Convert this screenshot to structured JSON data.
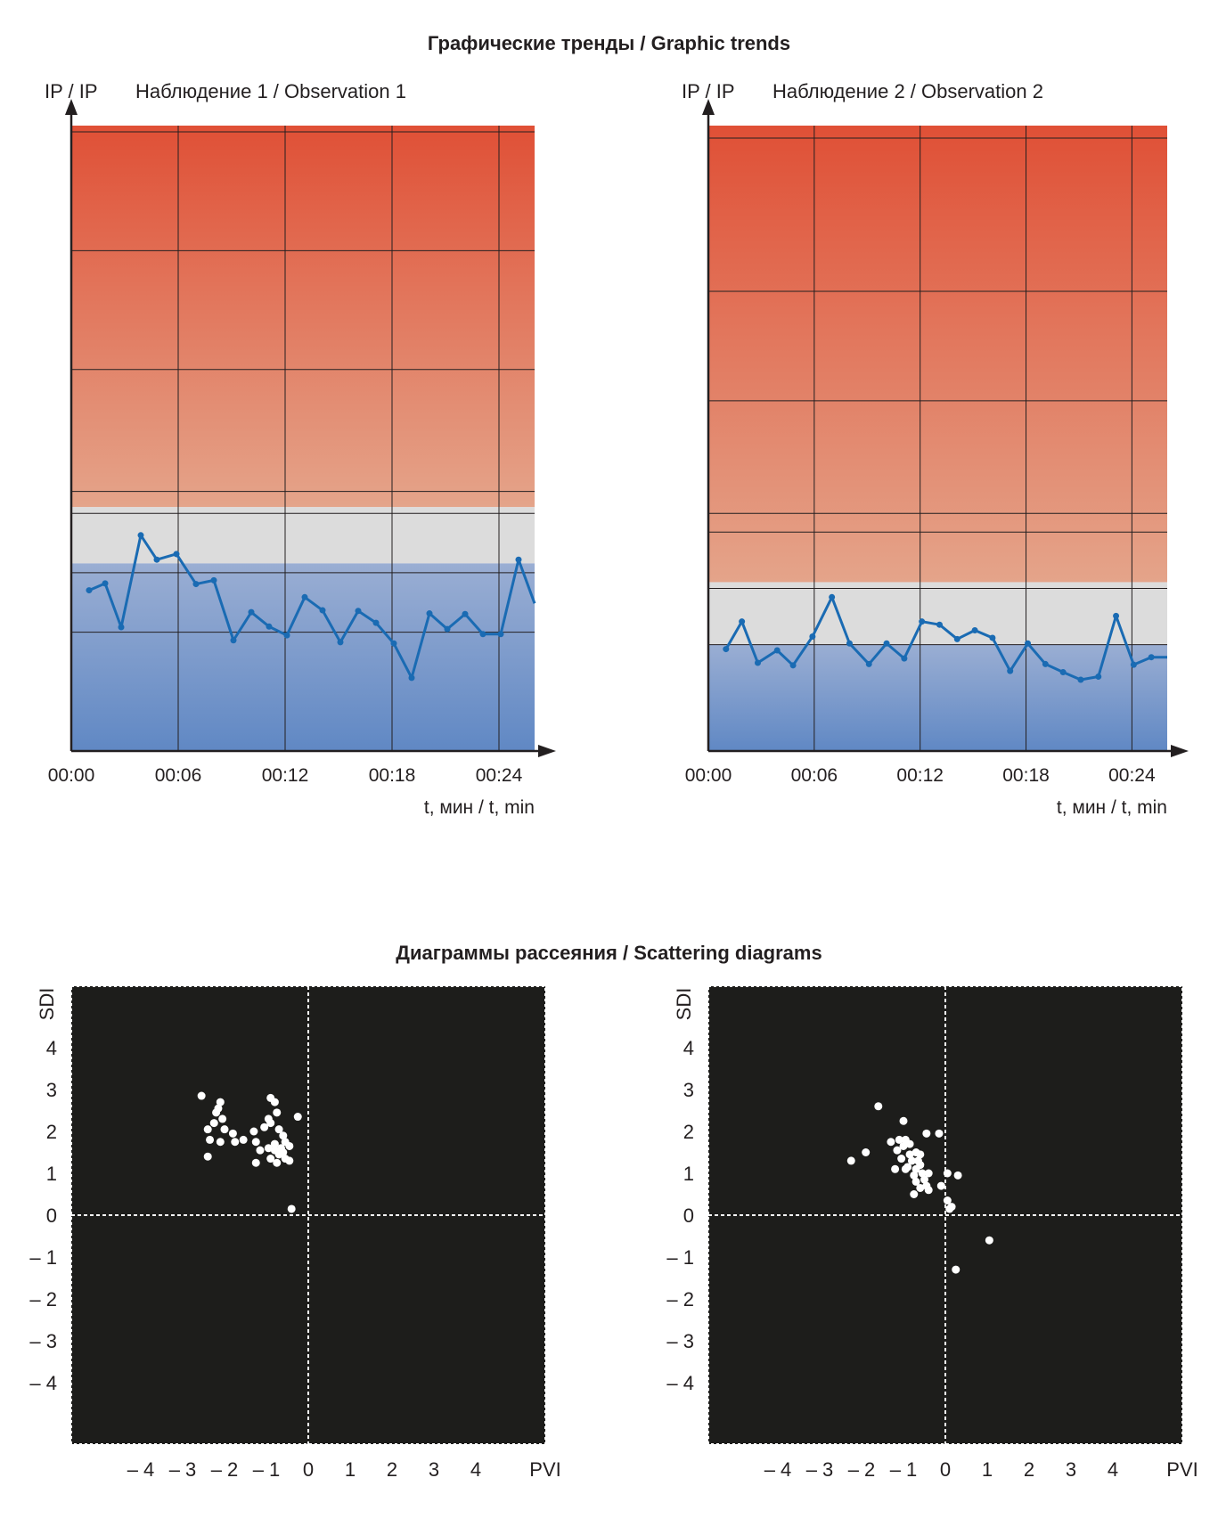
{
  "titles": {
    "trends": "Графические тренды / Graphic trends",
    "scatter": "Диаграммы рассеяния / Scattering diagrams"
  },
  "colors": {
    "red_zone_top": "#e05036",
    "red_zone_bottom": "#e4a48a",
    "grey_zone": "#dcdcdc",
    "blue_zone_top": "#9aaed3",
    "blue_zone_bottom": "#6088c4",
    "trend_line": "#1a6bb3",
    "scatter_background": "#1d1d1b",
    "scatter_points": "#ffffff"
  },
  "chart_data": [
    {
      "type": "line",
      "ylabel": "IP / IP",
      "title": "Наблюдение 1 / Observation 1",
      "xlabel": "t, мин / t, min",
      "x_ticks": [
        "00:00",
        "00:06",
        "00:12",
        "00:18",
        "00:24"
      ],
      "xlim": [
        0,
        26
      ],
      "ylim": [
        0,
        1
      ],
      "zones": {
        "normal_band": [
          0.3,
          0.39
        ]
      },
      "x": [
        1,
        1.9,
        2.8,
        3.9,
        4.8,
        5.9,
        7,
        8,
        9.1,
        10.1,
        11.1,
        12.1,
        13.1,
        14.1,
        15.1,
        16.1,
        17.1,
        18.1,
        19.1,
        20.1,
        21.1,
        22.1,
        23.1,
        24.1,
        25.1,
        26
      ],
      "values": [
        0.257,
        0.268,
        0.198,
        0.345,
        0.306,
        0.315,
        0.267,
        0.273,
        0.177,
        0.222,
        0.199,
        0.185,
        0.246,
        0.225,
        0.174,
        0.224,
        0.205,
        0.172,
        0.117,
        0.22,
        0.195,
        0.219,
        0.187,
        0.187,
        0.306,
        0.236
      ]
    },
    {
      "type": "line",
      "ylabel": "IP / IP",
      "title": "Наблюдение 2 / Observation 2",
      "xlabel": "t, мин / t, min",
      "x_ticks": [
        "00:00",
        "00:06",
        "00:12",
        "00:18",
        "00:24"
      ],
      "xlim": [
        0,
        26
      ],
      "ylim": [
        0,
        1
      ],
      "zones": {
        "normal_band": [
          0.17,
          0.27
        ]
      },
      "x": [
        1,
        1.9,
        2.8,
        3.9,
        4.8,
        5.9,
        7,
        8,
        9.1,
        10.1,
        11.1,
        12.1,
        13.1,
        14.1,
        15.1,
        16.1,
        17.1,
        18.1,
        19.1,
        20.1,
        21.1,
        22.1,
        23.1,
        24.1,
        25.1,
        26
      ],
      "values": [
        0.163,
        0.207,
        0.141,
        0.161,
        0.137,
        0.183,
        0.246,
        0.172,
        0.139,
        0.172,
        0.148,
        0.207,
        0.202,
        0.179,
        0.193,
        0.181,
        0.128,
        0.172,
        0.139,
        0.126,
        0.114,
        0.119,
        0.216,
        0.138,
        0.15,
        0.15
      ]
    },
    {
      "type": "scatter",
      "xlabel": "PVI",
      "ylabel": "SDI",
      "xlim": [
        -5.5,
        5.5
      ],
      "ylim": [
        -5.5,
        5.5
      ],
      "x_ticks": [
        "– 4",
        "– 3",
        "– 2",
        "– 1",
        "0",
        "1",
        "2",
        "3",
        "4"
      ],
      "y_ticks": [
        "4",
        "3",
        "2",
        "1",
        "0",
        "– 1",
        "– 2",
        "– 3",
        "– 4"
      ],
      "points": [
        [
          -2.55,
          2.85
        ],
        [
          -2.1,
          2.7
        ],
        [
          -2.15,
          2.55
        ],
        [
          -2.2,
          2.45
        ],
        [
          -2.05,
          2.3
        ],
        [
          -2.25,
          2.2
        ],
        [
          -2.4,
          2.05
        ],
        [
          -2.0,
          2.05
        ],
        [
          -1.8,
          1.95
        ],
        [
          -2.35,
          1.8
        ],
        [
          -2.1,
          1.75
        ],
        [
          -1.75,
          1.75
        ],
        [
          -2.4,
          1.4
        ],
        [
          -1.55,
          1.8
        ],
        [
          -1.3,
          2.0
        ],
        [
          -1.25,
          1.75
        ],
        [
          -1.05,
          2.1
        ],
        [
          -0.95,
          2.3
        ],
        [
          -0.8,
          2.7
        ],
        [
          -0.9,
          2.8
        ],
        [
          -0.75,
          2.45
        ],
        [
          -0.9,
          2.2
        ],
        [
          -0.7,
          2.05
        ],
        [
          -0.6,
          1.9
        ],
        [
          -0.55,
          1.75
        ],
        [
          -0.8,
          1.7
        ],
        [
          -0.65,
          1.6
        ],
        [
          -0.8,
          1.55
        ],
        [
          -0.95,
          1.6
        ],
        [
          -0.7,
          1.45
        ],
        [
          -0.55,
          1.35
        ],
        [
          -0.9,
          1.35
        ],
        [
          -0.75,
          1.25
        ],
        [
          -1.25,
          1.25
        ],
        [
          -0.45,
          1.3
        ],
        [
          -0.45,
          1.65
        ],
        [
          -0.25,
          2.35
        ],
        [
          -0.4,
          0.15
        ],
        [
          -1.15,
          1.55
        ],
        [
          -0.6,
          1.5
        ]
      ]
    },
    {
      "type": "scatter",
      "xlabel": "PVI",
      "ylabel": "SDI",
      "xlim": [
        -5.5,
        5.5
      ],
      "ylim": [
        -5.5,
        5.5
      ],
      "x_ticks": [
        "– 4",
        "– 3",
        "– 2",
        "– 1",
        "0",
        "1",
        "2",
        "3",
        "4"
      ],
      "y_ticks": [
        "4",
        "3",
        "2",
        "1",
        "0",
        "– 1",
        "– 2",
        "– 3",
        "– 4"
      ],
      "points": [
        [
          -1.6,
          2.6
        ],
        [
          -1.0,
          2.25
        ],
        [
          -2.25,
          1.3
        ],
        [
          -1.9,
          1.5
        ],
        [
          -1.3,
          1.75
        ],
        [
          -1.1,
          1.8
        ],
        [
          -1.0,
          1.65
        ],
        [
          -0.95,
          1.8
        ],
        [
          -1.15,
          1.55
        ],
        [
          -0.85,
          1.45
        ],
        [
          -0.7,
          1.5
        ],
        [
          -0.6,
          1.45
        ],
        [
          -1.05,
          1.35
        ],
        [
          -0.8,
          1.3
        ],
        [
          -0.65,
          1.3
        ],
        [
          -0.9,
          1.15
        ],
        [
          -1.2,
          1.1
        ],
        [
          -0.95,
          1.1
        ],
        [
          -0.7,
          1.1
        ],
        [
          -0.55,
          1.0
        ],
        [
          -0.4,
          1.0
        ],
        [
          -0.75,
          0.95
        ],
        [
          -0.5,
          0.85
        ],
        [
          -0.7,
          0.8
        ],
        [
          -0.45,
          0.7
        ],
        [
          -0.6,
          0.65
        ],
        [
          -0.75,
          0.5
        ],
        [
          -0.4,
          0.6
        ],
        [
          -0.1,
          0.7
        ],
        [
          0.05,
          1.0
        ],
        [
          0.3,
          0.95
        ],
        [
          -0.45,
          1.95
        ],
        [
          -0.15,
          1.95
        ],
        [
          0.05,
          0.35
        ],
        [
          0.15,
          0.2
        ],
        [
          0.1,
          0.15
        ],
        [
          1.05,
          -0.6
        ],
        [
          0.25,
          -1.3
        ],
        [
          -0.85,
          1.7
        ],
        [
          -0.6,
          1.2
        ]
      ]
    }
  ]
}
